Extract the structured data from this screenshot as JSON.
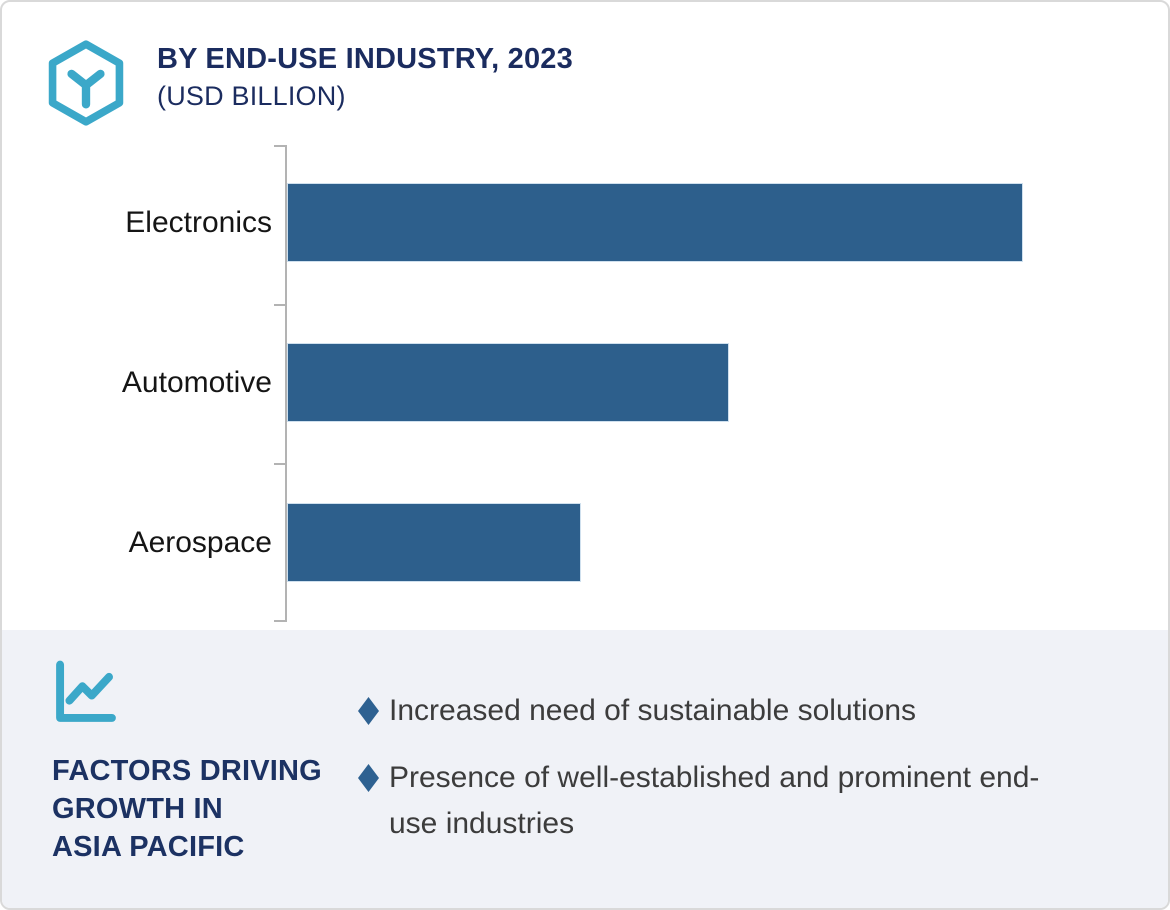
{
  "header": {
    "title": "BY END-USE INDUSTRY, 2023",
    "subtitle": "(USD BILLION)",
    "logo_icon": "hexagon-cube-icon",
    "title_color": "#1b2c5f",
    "logo_color": "#3ba8c9"
  },
  "chart_data": {
    "type": "bar",
    "orientation": "horizontal",
    "title": "BY END-USE INDUSTRY, 2023 (USD BILLION)",
    "unit": "USD Billion",
    "categories": [
      "Electronics",
      "Automotive",
      "Aerospace"
    ],
    "values": [
      100,
      60,
      40
    ],
    "xlim": [
      0,
      117
    ],
    "grid": false,
    "value_labels_shown": false,
    "bar_color": "#2d5f8c",
    "axis_color": "#b3b3b3",
    "label_color": "#151515"
  },
  "factors": {
    "icon": "line-chart-icon",
    "icon_color": "#3ba8c9",
    "heading": "FACTORS DRIVING\nGROWTH IN\nASIA PACIFIC",
    "items": [
      "Increased need of sustainable solutions",
      "Presence of well-established and prominent end-use industries"
    ],
    "bullet_color": "#2e6191",
    "panel_bg": "#f0f2f7",
    "heading_color": "#1c3263"
  }
}
